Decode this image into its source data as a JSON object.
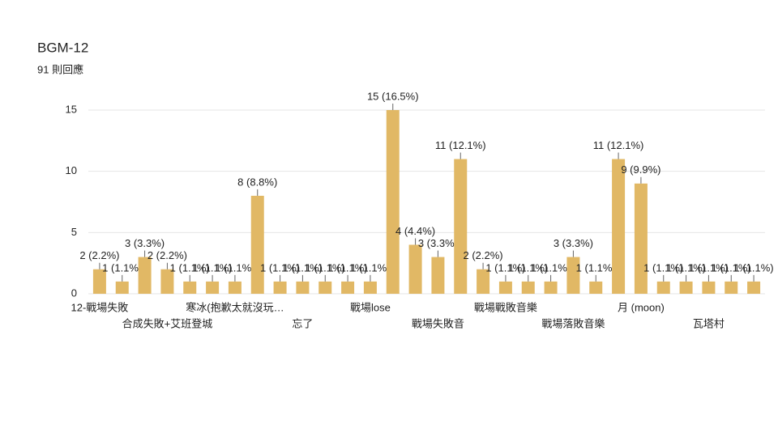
{
  "chart_data": {
    "type": "bar",
    "title": "BGM-12",
    "subtitle": "91 則回應",
    "categories": [
      "12-戰場失敗",
      null,
      null,
      "合成失敗+艾班登城",
      null,
      null,
      "寒冰(抱歉太就沒玩…",
      null,
      null,
      "忘了",
      null,
      null,
      "戰場lose",
      null,
      null,
      "戰場失敗音",
      null,
      null,
      "戰場戰敗音樂",
      null,
      null,
      "戰場落敗音樂",
      null,
      null,
      "月 (moon)",
      null,
      null,
      "瓦塔村",
      null,
      null
    ],
    "values": [
      2,
      1,
      3,
      2,
      1,
      1,
      1,
      8,
      1,
      1,
      1,
      1,
      1,
      15,
      4,
      3,
      11,
      2,
      1,
      1,
      1,
      3,
      1,
      11,
      9,
      1,
      1,
      1,
      1,
      1
    ],
    "value_labels": [
      "2 (2.2%)",
      "1 (1.1%)",
      "3 (3.3%)",
      "2 (2.2%)",
      "1 (1.1%)",
      "1 (1.1%)",
      "1 (1.1%)",
      "8 (8.8%)",
      "1 (1.1%)",
      "1 (1.1%)",
      "1 (1.1%)",
      "1 (1.1%)",
      "1 (1.1%)",
      "15 (16.5%)",
      "4 (4.4%)",
      "3 (3.3%)",
      "11 (12.1%)",
      "2 (2.2%)",
      "1 (1.1%)",
      "1 (1.1%)",
      "1 (1.1%)",
      "3 (3.3%)",
      "1 (1.1%)",
      "11 (12.1%)",
      "9 (9.9%)",
      "1 (1.1%)",
      "1 (1.1%)",
      "1 (1.1%)",
      "1 (1.1%)",
      "1 (1.1%)"
    ],
    "color": "#e1b865",
    "ylim": [
      0,
      15
    ],
    "yticks": [
      0,
      5,
      10,
      15
    ],
    "grid": true
  }
}
